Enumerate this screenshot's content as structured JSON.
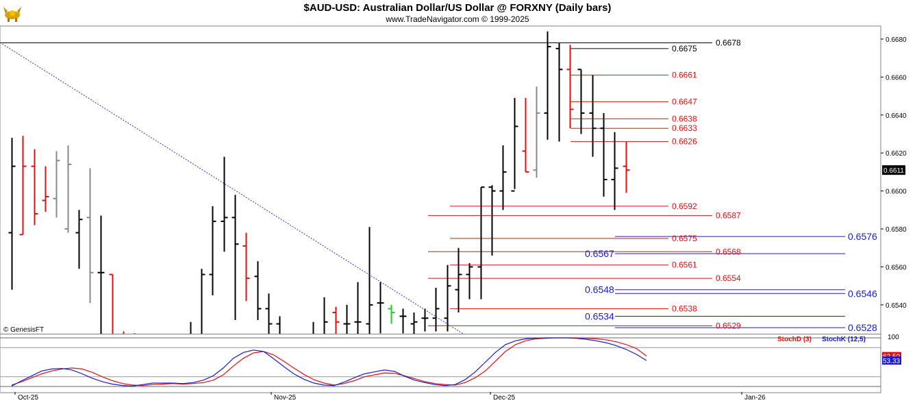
{
  "header": {
    "title": "$AUD-USD:  Australian Dollar/US Dollar @ FORXNY  (Daily bars)",
    "subtitle": "www.TradeNavigator.com © 1999-2025",
    "logo_icon": "gold-bull-logo"
  },
  "colors": {
    "up_bar": "#000000",
    "down_bar": "#dd1111",
    "neutral_bar": "#888888",
    "fib_red": "#dd1111",
    "fib_blue": "#1a1acc",
    "trendline": "#2233cc",
    "stoch_d": "#dd1111",
    "stoch_k": "#1a1acc"
  },
  "chart_data": [
    {
      "type": "ohlc",
      "title": "$AUD-USD:  Australian Dollar/US Dollar @ FORXNY  (Daily bars)",
      "y_range": [
        0.652,
        0.6686
      ],
      "y_ticks": [
        "0.6680",
        "0.6660",
        "0.6640",
        "0.6620",
        "0.6600",
        "0.6580",
        "0.6560",
        "0.6540"
      ],
      "x_ticks": [
        "Oct-25",
        "Nov-25",
        "Dec-25",
        "Jan-26"
      ],
      "last_price": "0.6611",
      "watermark": "© GenesisFT",
      "bars": [
        {
          "o": 0.6578,
          "h": 0.6628,
          "l": 0.6548,
          "c": 0.6613,
          "d": "up"
        },
        {
          "o": 0.6577,
          "h": 0.6629,
          "l": 0.6577,
          "c": 0.6613,
          "d": "down"
        },
        {
          "o": 0.6613,
          "h": 0.6622,
          "l": 0.6582,
          "c": 0.6588,
          "d": "down"
        },
        {
          "o": 0.6595,
          "h": 0.6613,
          "l": 0.6589,
          "c": 0.6597,
          "d": "down"
        },
        {
          "o": 0.6596,
          "h": 0.6621,
          "l": 0.6586,
          "c": 0.6616,
          "d": "neutral"
        },
        {
          "o": 0.658,
          "h": 0.6624,
          "l": 0.6578,
          "c": 0.6614,
          "d": "neutral"
        },
        {
          "o": 0.6578,
          "h": 0.659,
          "l": 0.6559,
          "c": 0.6585,
          "d": "up"
        },
        {
          "o": 0.6586,
          "h": 0.6612,
          "l": 0.6541,
          "c": 0.6557,
          "d": "neutral"
        },
        {
          "o": 0.6557,
          "h": 0.6587,
          "l": 0.6515,
          "c": 0.6557,
          "d": "up"
        },
        {
          "o": 0.6556,
          "h": 0.6556,
          "l": 0.6505,
          "c": 0.6512,
          "d": "down"
        },
        {
          "o": 0.6512,
          "h": 0.6526,
          "l": 0.65,
          "c": 0.6505,
          "d": "down"
        },
        {
          "o": 0.6515,
          "h": 0.6525,
          "l": 0.6505,
          "c": 0.6512,
          "d": "up"
        },
        {
          "o": 0.6505,
          "h": 0.6521,
          "l": 0.6498,
          "c": 0.6505,
          "d": "up"
        },
        {
          "o": 0.6505,
          "h": 0.6523,
          "l": 0.6492,
          "c": 0.6505,
          "d": "down"
        },
        {
          "o": 0.6505,
          "h": 0.6508,
          "l": 0.6495,
          "c": 0.6503,
          "d": "neutral"
        },
        {
          "o": 0.6505,
          "h": 0.6517,
          "l": 0.6498,
          "c": 0.6512,
          "d": "up"
        },
        {
          "o": 0.6511,
          "h": 0.6531,
          "l": 0.6508,
          "c": 0.6521,
          "d": "up"
        },
        {
          "o": 0.652,
          "h": 0.6559,
          "l": 0.6519,
          "c": 0.6556,
          "d": "up"
        },
        {
          "o": 0.6556,
          "h": 0.6592,
          "l": 0.6545,
          "c": 0.6584,
          "d": "up"
        },
        {
          "o": 0.6584,
          "h": 0.6618,
          "l": 0.6568,
          "c": 0.6586,
          "d": "up"
        },
        {
          "o": 0.6586,
          "h": 0.6598,
          "l": 0.6532,
          "c": 0.6572,
          "d": "up"
        },
        {
          "o": 0.6571,
          "h": 0.6578,
          "l": 0.6542,
          "c": 0.6554,
          "d": "down"
        },
        {
          "o": 0.6555,
          "h": 0.6563,
          "l": 0.6532,
          "c": 0.6538,
          "d": "up"
        },
        {
          "o": 0.6538,
          "h": 0.6546,
          "l": 0.6522,
          "c": 0.653,
          "d": "up"
        },
        {
          "o": 0.653,
          "h": 0.6534,
          "l": 0.6505,
          "c": 0.6515,
          "d": "up"
        },
        {
          "o": 0.6515,
          "h": 0.6521,
          "l": 0.6503,
          "c": 0.6512,
          "d": "up"
        },
        {
          "o": 0.6514,
          "h": 0.6521,
          "l": 0.6503,
          "c": 0.6514,
          "d": "up"
        },
        {
          "o": 0.6514,
          "h": 0.6531,
          "l": 0.6502,
          "c": 0.6514,
          "d": "up"
        },
        {
          "o": 0.6515,
          "h": 0.6544,
          "l": 0.6505,
          "c": 0.6531,
          "d": "up"
        },
        {
          "o": 0.6536,
          "h": 0.6539,
          "l": 0.6519,
          "c": 0.6531,
          "d": "down"
        },
        {
          "o": 0.653,
          "h": 0.654,
          "l": 0.6523,
          "c": 0.653,
          "d": "up"
        },
        {
          "o": 0.6531,
          "h": 0.6552,
          "l": 0.6524,
          "c": 0.6531,
          "d": "up"
        },
        {
          "o": 0.653,
          "h": 0.6581,
          "l": 0.6524,
          "c": 0.654,
          "d": "up"
        },
        {
          "o": 0.6541,
          "h": 0.6552,
          "l": 0.6525,
          "c": 0.6541,
          "d": "up"
        },
        {
          "o": 0.6538,
          "h": 0.654,
          "l": 0.653,
          "c": 0.6536,
          "d": "green"
        },
        {
          "o": 0.6534,
          "h": 0.6538,
          "l": 0.6525,
          "c": 0.6534,
          "d": "up"
        },
        {
          "o": 0.653,
          "h": 0.6536,
          "l": 0.652,
          "c": 0.6531,
          "d": "up"
        },
        {
          "o": 0.6533,
          "h": 0.6538,
          "l": 0.6526,
          "c": 0.6533,
          "d": "up"
        },
        {
          "o": 0.6533,
          "h": 0.6549,
          "l": 0.6526,
          "c": 0.6538,
          "d": "up"
        },
        {
          "o": 0.6533,
          "h": 0.6561,
          "l": 0.6526,
          "c": 0.655,
          "d": "up"
        },
        {
          "o": 0.6548,
          "h": 0.657,
          "l": 0.6536,
          "c": 0.6556,
          "d": "up"
        },
        {
          "o": 0.6556,
          "h": 0.6562,
          "l": 0.6543,
          "c": 0.656,
          "d": "up"
        },
        {
          "o": 0.656,
          "h": 0.6602,
          "l": 0.6543,
          "c": 0.6602,
          "d": "up"
        },
        {
          "o": 0.6602,
          "h": 0.6603,
          "l": 0.6566,
          "c": 0.66,
          "d": "up"
        },
        {
          "o": 0.66,
          "h": 0.6624,
          "l": 0.659,
          "c": 0.661,
          "d": "up"
        },
        {
          "o": 0.66,
          "h": 0.6649,
          "l": 0.6601,
          "c": 0.6634,
          "d": "up"
        },
        {
          "o": 0.6621,
          "h": 0.6649,
          "l": 0.661,
          "c": 0.661,
          "d": "down"
        },
        {
          "o": 0.6611,
          "h": 0.6655,
          "l": 0.6607,
          "c": 0.6641,
          "d": "neutral"
        },
        {
          "o": 0.6641,
          "h": 0.6684,
          "l": 0.6627,
          "c": 0.6676,
          "d": "up"
        },
        {
          "o": 0.6675,
          "h": 0.6678,
          "l": 0.6626,
          "c": 0.6664,
          "d": "up"
        },
        {
          "o": 0.6664,
          "h": 0.6677,
          "l": 0.6633,
          "c": 0.6643,
          "d": "down"
        },
        {
          "o": 0.6664,
          "h": 0.6664,
          "l": 0.663,
          "c": 0.6641,
          "d": "up"
        },
        {
          "o": 0.6641,
          "h": 0.6661,
          "l": 0.6618,
          "c": 0.6633,
          "d": "up"
        },
        {
          "o": 0.6633,
          "h": 0.6641,
          "l": 0.6597,
          "c": 0.6606,
          "d": "up"
        },
        {
          "o": 0.6606,
          "h": 0.6631,
          "l": 0.659,
          "c": 0.6612,
          "d": "up"
        },
        {
          "o": 0.6613,
          "h": 0.6626,
          "l": 0.6599,
          "c": 0.6611,
          "d": "down"
        }
      ],
      "levels_red_upper": [
        {
          "label": "0.6675",
          "value": 0.6675
        },
        {
          "label": "0.6661",
          "value": 0.6661
        },
        {
          "label": "0.6647",
          "value": 0.6647
        },
        {
          "label": "0.6638",
          "value": 0.6638
        },
        {
          "label": "0.6633",
          "value": 0.6633
        },
        {
          "label": "0.6626",
          "value": 0.6626
        }
      ],
      "levels_red_lower": [
        {
          "label": "0.6592",
          "value": 0.6592,
          "start_bar": 39
        },
        {
          "label": "0.6575",
          "value": 0.6575,
          "start_bar": 39
        },
        {
          "label": "0.6561",
          "value": 0.6561,
          "start_bar": 39
        },
        {
          "label": "0.6538",
          "value": 0.6538,
          "start_bar": 39
        },
        {
          "label": "0.6587",
          "value": 0.6587,
          "start_bar": 37
        },
        {
          "label": "0.6568",
          "value": 0.6568,
          "start_bar": 37
        },
        {
          "label": "0.6554",
          "value": 0.6554,
          "start_bar": 37
        },
        {
          "label": "0.6529",
          "value": 0.6529,
          "start_bar": 37
        }
      ],
      "levels_blue": [
        {
          "label": "0.6576",
          "value": 0.6576
        },
        {
          "label": "0.6567",
          "value": 0.6567
        },
        {
          "label": "0.6548",
          "value": 0.6548
        },
        {
          "label": "0.6546",
          "value": 0.6546
        },
        {
          "label": "0.6534",
          "value": 0.6534
        },
        {
          "label": "0.6528",
          "value": 0.6528
        }
      ],
      "high_line": {
        "label": "0.6678",
        "value": 0.6678
      }
    },
    {
      "type": "line",
      "title": "",
      "y_range": [
        0,
        100
      ],
      "y_ticks": [
        "100"
      ],
      "legend": [
        "StochD (3)",
        "StochK (12,5)"
      ],
      "series": [
        {
          "name": "StochD (3)",
          "last_label": "62.50",
          "values": [
            3,
            10,
            18,
            26,
            32,
            36,
            38,
            36,
            29,
            20,
            12,
            6,
            3,
            2,
            4,
            5,
            6,
            5,
            6,
            8,
            13,
            24,
            42,
            58,
            69,
            72,
            65,
            52,
            38,
            25,
            14,
            7,
            3,
            6,
            12,
            20,
            24,
            28,
            27,
            22,
            16,
            10,
            6,
            4,
            3,
            8,
            18,
            32,
            52,
            72,
            86,
            94,
            98,
            99,
            100,
            100,
            100,
            99,
            98,
            96,
            92,
            86,
            78,
            62.5
          ]
        },
        {
          "name": "StochK (12,5)",
          "last_label": "53.33",
          "values": [
            1,
            12,
            22,
            32,
            36,
            37,
            34,
            26,
            17,
            10,
            5,
            2,
            1,
            4,
            7,
            7,
            7,
            6,
            8,
            13,
            22,
            38,
            58,
            70,
            75,
            72,
            57,
            41,
            26,
            15,
            7,
            3,
            2,
            9,
            18,
            26,
            30,
            34,
            31,
            21,
            13,
            8,
            4,
            2,
            4,
            14,
            30,
            50,
            70,
            86,
            94,
            98,
            99,
            100,
            100,
            100,
            99,
            97,
            94,
            90,
            84,
            76,
            66,
            53.33
          ]
        }
      ]
    }
  ]
}
